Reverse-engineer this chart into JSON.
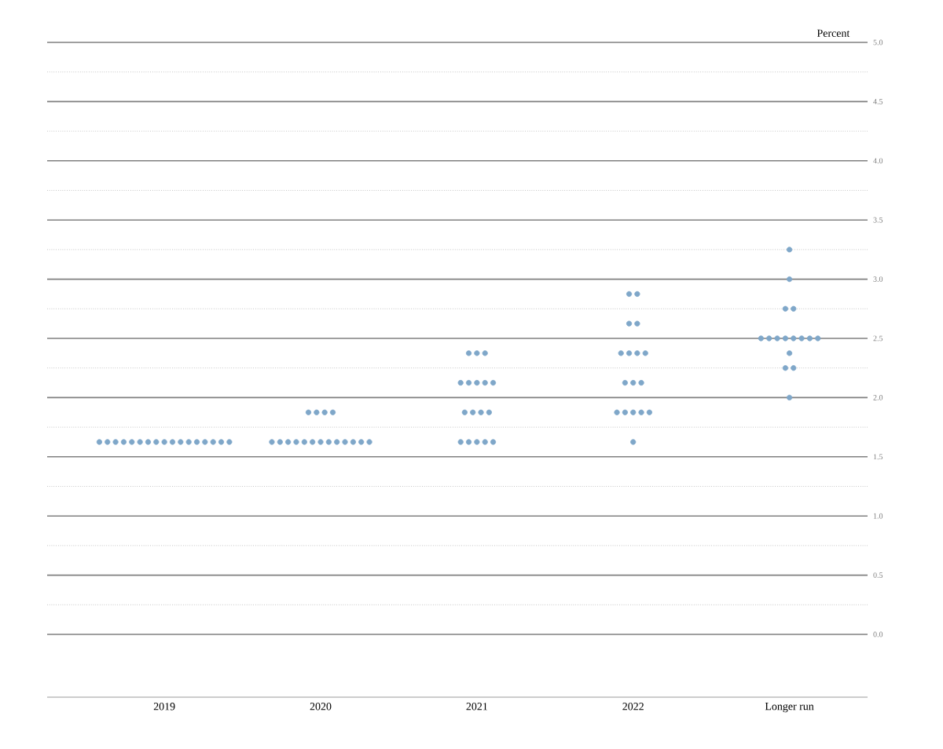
{
  "chart_data": {
    "type": "scatter",
    "ylabel": "Percent",
    "categories": [
      "2019",
      "2020",
      "2021",
      "2022",
      "Longer run"
    ],
    "series": [
      {
        "color": "#7fa7c9",
        "values": [
          1.625,
          1.875,
          2.375,
          2.875,
          3.25
        ]
      },
      {
        "color": "#7fa7c9",
        "values": [
          1.625,
          1.875,
          2.375,
          2.875,
          3.0
        ]
      },
      {
        "color": "#7fa7c9",
        "values": [
          1.625,
          1.875,
          2.375,
          2.625,
          2.75
        ]
      },
      {
        "color": "#7fa7c9",
        "values": [
          1.625,
          1.875,
          2.125,
          2.625,
          2.75
        ]
      },
      {
        "color": "#7fa7c9",
        "values": [
          1.625,
          1.625,
          2.125,
          2.375,
          2.5
        ]
      },
      {
        "color": "#7fa7c9",
        "values": [
          1.625,
          1.625,
          2.125,
          2.375,
          2.5
        ]
      },
      {
        "color": "#7fa7c9",
        "values": [
          1.625,
          1.625,
          2.125,
          2.375,
          2.5
        ]
      },
      {
        "color": "#7fa7c9",
        "values": [
          1.625,
          1.625,
          2.125,
          2.375,
          2.5
        ]
      },
      {
        "color": "#7fa7c9",
        "values": [
          1.625,
          1.625,
          1.875,
          2.125,
          2.5
        ]
      },
      {
        "color": "#7fa7c9",
        "values": [
          1.625,
          1.625,
          1.875,
          2.125,
          2.5
        ]
      },
      {
        "color": "#7fa7c9",
        "values": [
          1.625,
          1.625,
          1.875,
          2.125,
          2.5
        ]
      },
      {
        "color": "#7fa7c9",
        "values": [
          1.625,
          1.625,
          1.875,
          1.875,
          2.5
        ]
      },
      {
        "color": "#7fa7c9",
        "values": [
          1.625,
          1.625,
          1.625,
          1.875,
          2.375
        ]
      },
      {
        "color": "#7fa7c9",
        "values": [
          1.625,
          1.625,
          1.625,
          1.875,
          2.25
        ]
      },
      {
        "color": "#7fa7c9",
        "values": [
          1.625,
          1.625,
          1.625,
          1.875,
          2.25
        ]
      },
      {
        "color": "#7fa7c9",
        "values": [
          1.625,
          1.625,
          1.625,
          1.875,
          2.0
        ]
      },
      {
        "color": "#7fa7c9",
        "values": [
          1.625,
          1.625,
          1.625,
          1.625,
          null
        ]
      }
    ],
    "ylim": [
      0,
      5
    ],
    "yticks": [
      {
        "value": 0,
        "label": "0.0"
      },
      0.5,
      {
        "value": 1,
        "label": "1.0"
      },
      1.5,
      {
        "value": 2,
        "label": "2.0"
      },
      2.5,
      {
        "value": 3,
        "label": "3.0"
      },
      3.5,
      {
        "value": 4,
        "label": "4.0"
      },
      4.5,
      {
        "value": 5,
        "label": "5.0"
      }
    ],
    "grid": "y",
    "marker": "circle"
  }
}
